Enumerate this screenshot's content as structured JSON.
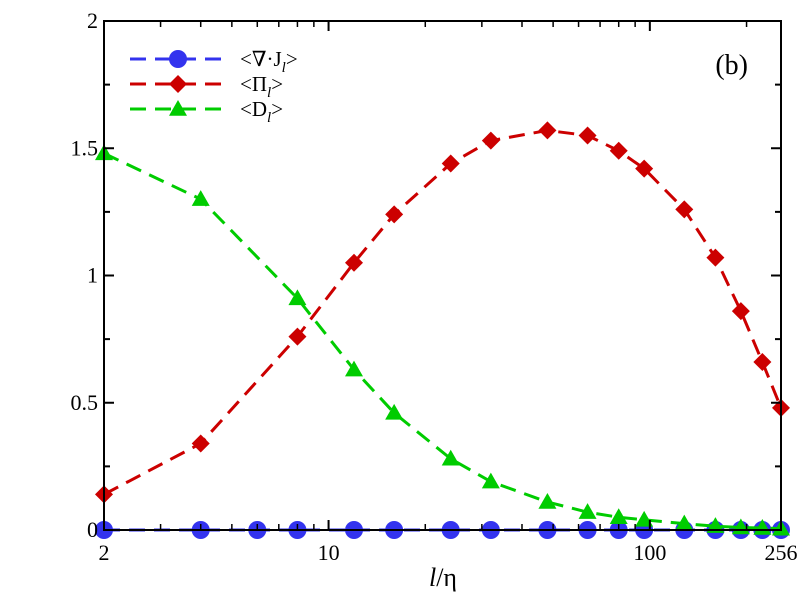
{
  "chart_data": {
    "type": "line",
    "title": "",
    "panel_label": "(b)",
    "xlabel": "l/η",
    "xlabel_parts": {
      "var": "l",
      "sep": "/",
      "greek": "η"
    },
    "ylabel": "",
    "x_scale": "log2",
    "xlim": [
      2,
      256
    ],
    "ylim": [
      0,
      2
    ],
    "x_ticks": [
      2,
      10,
      100,
      256
    ],
    "x_tick_labels": [
      "2",
      "10",
      "100",
      "256"
    ],
    "y_ticks": [
      0,
      0.5,
      1,
      1.5,
      2
    ],
    "y_tick_labels": [
      "0",
      "0.5",
      "1",
      "1.5",
      "2"
    ],
    "zero_line": true,
    "legend_position": "top-left",
    "series": [
      {
        "name": "<∇·J_l>",
        "legend_label": "<∇·J",
        "legend_sub": "l",
        "color": "#3333ee",
        "marker": "circle",
        "x": [
          2,
          4,
          6,
          8,
          12,
          16,
          24,
          32,
          48,
          64,
          80,
          96,
          128,
          160,
          192,
          224,
          256
        ],
        "y": [
          0,
          0,
          0,
          0,
          0,
          0,
          0,
          0,
          0,
          0,
          0,
          0,
          0,
          0,
          0,
          0,
          0
        ]
      },
      {
        "name": "<Π_l>",
        "legend_label": "<Π",
        "legend_sub": "l",
        "color": "#cc0000",
        "marker": "diamond",
        "x": [
          2,
          4,
          8,
          12,
          16,
          24,
          32,
          48,
          64,
          80,
          96,
          128,
          160,
          192,
          224,
          256
        ],
        "y": [
          0.14,
          0.34,
          0.76,
          1.05,
          1.24,
          1.44,
          1.53,
          1.57,
          1.55,
          1.49,
          1.42,
          1.26,
          1.07,
          0.86,
          0.66,
          0.48
        ]
      },
      {
        "name": "<D_l>",
        "legend_label": "<D",
        "legend_sub": "l",
        "color": "#00cc00",
        "marker": "triangle",
        "x": [
          2,
          4,
          8,
          12,
          16,
          24,
          32,
          48,
          64,
          80,
          96,
          128,
          160,
          192,
          224,
          256
        ],
        "y": [
          1.48,
          1.3,
          0.91,
          0.63,
          0.46,
          0.28,
          0.19,
          0.11,
          0.07,
          0.05,
          0.04,
          0.025,
          0.015,
          0.01,
          0.008,
          0.005
        ]
      }
    ]
  }
}
